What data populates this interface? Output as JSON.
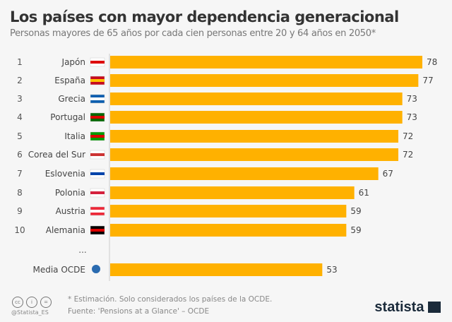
{
  "chart_data": {
    "type": "bar",
    "orientation": "horizontal",
    "title": "Los países con mayor dependencia generacional",
    "subtitle": "Personas mayores de 65 años por cada cien personas entre 20 y 64 años en 2050*",
    "ranks": [
      "1",
      "2",
      "3",
      "4",
      "5",
      "6",
      "7",
      "8",
      "9",
      "10"
    ],
    "categories": [
      "Japón",
      "España",
      "Grecia",
      "Portugal",
      "Italia",
      "Corea del Sur",
      "Eslovenia",
      "Polonia",
      "Austria",
      "Alemania"
    ],
    "values": [
      78,
      77,
      73,
      73,
      72,
      72,
      67,
      61,
      59,
      59
    ],
    "ellipsis": "...",
    "average": {
      "label": "Media OCDE",
      "value": 53
    },
    "bar_color": "#ffb100",
    "xlim": [
      0,
      78
    ]
  },
  "footer": {
    "note": "* Estimación. Solo considerados los países de la OCDE.",
    "source": "Fuente: 'Pensions at a Glance' – OCDE",
    "handle": "@Statista_ES",
    "brand": "statista"
  }
}
